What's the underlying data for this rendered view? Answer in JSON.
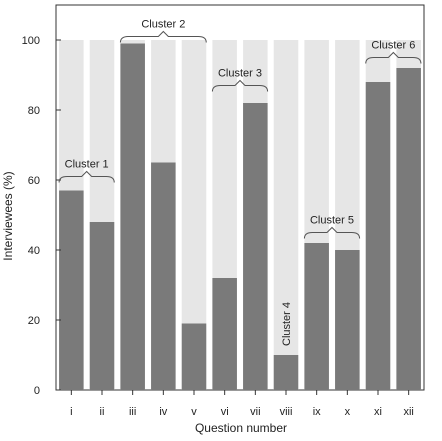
{
  "chart_data": {
    "type": "bar",
    "categories": [
      "i",
      "ii",
      "iii",
      "iv",
      "v",
      "vi",
      "vii",
      "viii",
      "ix",
      "x",
      "xi",
      "xii"
    ],
    "values": [
      57,
      48,
      99,
      65,
      19,
      32,
      82,
      10,
      42,
      40,
      88,
      92
    ],
    "background_value": 100,
    "xlabel": "Question number",
    "ylabel": "Interviewees (%)",
    "ylim": [
      0,
      110
    ],
    "yticks": [
      0,
      20,
      40,
      60,
      80,
      100
    ],
    "grid": false,
    "colors": {
      "bar": "#7a7a7a",
      "background_bar": "#e6e6e6",
      "axis": "#333333"
    },
    "annotations": [
      {
        "label": "Cluster 1",
        "from": 0,
        "to": 1,
        "y": 61
      },
      {
        "label": "Cluster 2",
        "from": 2,
        "to": 4,
        "y": 101
      },
      {
        "label": "Cluster 3",
        "from": 5,
        "to": 6,
        "y": 87
      },
      {
        "label": "Cluster 4",
        "from": 7,
        "to": 7,
        "y": 12,
        "rotated": true
      },
      {
        "label": "Cluster 5",
        "from": 8,
        "to": 9,
        "y": 45
      },
      {
        "label": "Cluster 6",
        "from": 10,
        "to": 11,
        "y": 95
      }
    ]
  }
}
